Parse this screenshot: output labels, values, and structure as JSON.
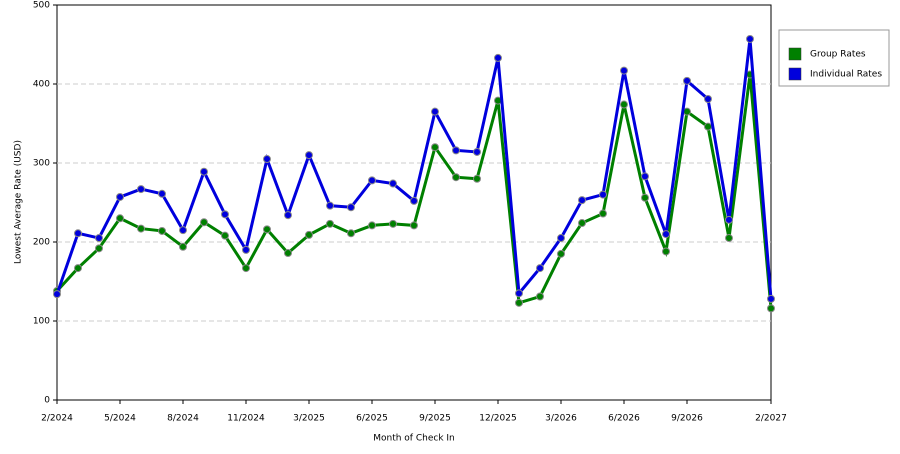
{
  "chart_data": {
    "type": "line",
    "x_label": "Month of Check In",
    "y_label": "Lowest Average Rate (USD)",
    "categories": [
      "2/2024",
      null,
      null,
      "5/2024",
      null,
      null,
      "8/2024",
      null,
      null,
      "11/2024",
      null,
      null,
      "3/2025",
      null,
      null,
      "6/2025",
      null,
      null,
      "9/2025",
      null,
      null,
      "12/2025",
      null,
      null,
      "3/2026",
      null,
      null,
      "6/2026",
      null,
      null,
      "9/2026",
      null,
      null,
      null,
      "2/2027"
    ],
    "series": [
      {
        "name": "Group Rates",
        "color": "#008000",
        "values": [
          138,
          167,
          192,
          230,
          217,
          214,
          194,
          225,
          208,
          167,
          216,
          186,
          209,
          223,
          211,
          221,
          223,
          221,
          320,
          282,
          280,
          379,
          123,
          131,
          185,
          224,
          236,
          374,
          256,
          188,
          365,
          346,
          205,
          412,
          116
        ]
      },
      {
        "name": "Individual Rates",
        "color": "#0000dd",
        "values": [
          134,
          211,
          205,
          257,
          267,
          261,
          215,
          289,
          235,
          190,
          305,
          234,
          310,
          246,
          244,
          278,
          274,
          252,
          365,
          316,
          314,
          433,
          135,
          167,
          205,
          253,
          260,
          417,
          283,
          210,
          404,
          381,
          228,
          457,
          128
        ]
      }
    ],
    "ylim": [
      0,
      500
    ],
    "yticks": [
      0,
      100,
      200,
      300,
      400,
      500
    ],
    "grid": true,
    "legend": "right"
  }
}
